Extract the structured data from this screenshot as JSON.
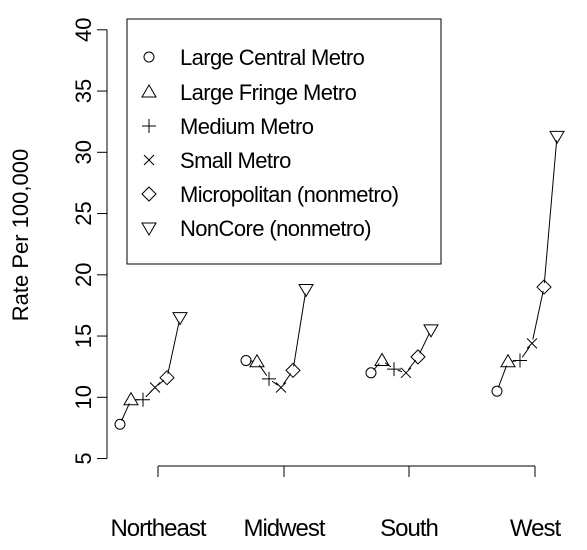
{
  "chart_data": {
    "type": "scatter",
    "title": "",
    "xlabel": "",
    "ylabel": "Rate Per 100,000",
    "categories": [
      "Northeast",
      "Midwest",
      "South",
      "West"
    ],
    "ylim": [
      4,
      40
    ],
    "yticks": [
      5,
      10,
      15,
      20,
      25,
      30,
      35,
      40
    ],
    "grid": false,
    "legend_position": "top-left",
    "series": [
      {
        "name": "Large Central Metro",
        "marker": "circle",
        "values": [
          7.8,
          13.0,
          12.0,
          10.5
        ]
      },
      {
        "name": "Large Fringe Metro",
        "marker": "triangle-up",
        "values": [
          9.8,
          12.9,
          13.0,
          12.9
        ]
      },
      {
        "name": "Medium Metro",
        "marker": "plus",
        "values": [
          9.8,
          11.5,
          12.3,
          13.0
        ]
      },
      {
        "name": "Small Metro",
        "marker": "x",
        "values": [
          10.8,
          10.8,
          12.0,
          14.4
        ]
      },
      {
        "name": "Micropolitan (nonmetro)",
        "marker": "diamond",
        "values": [
          11.6,
          12.2,
          13.3,
          19.0
        ]
      },
      {
        "name": "NonCore (nonmetro)",
        "marker": "triangle-down",
        "values": [
          16.5,
          18.8,
          15.5,
          31.3
        ]
      }
    ]
  }
}
